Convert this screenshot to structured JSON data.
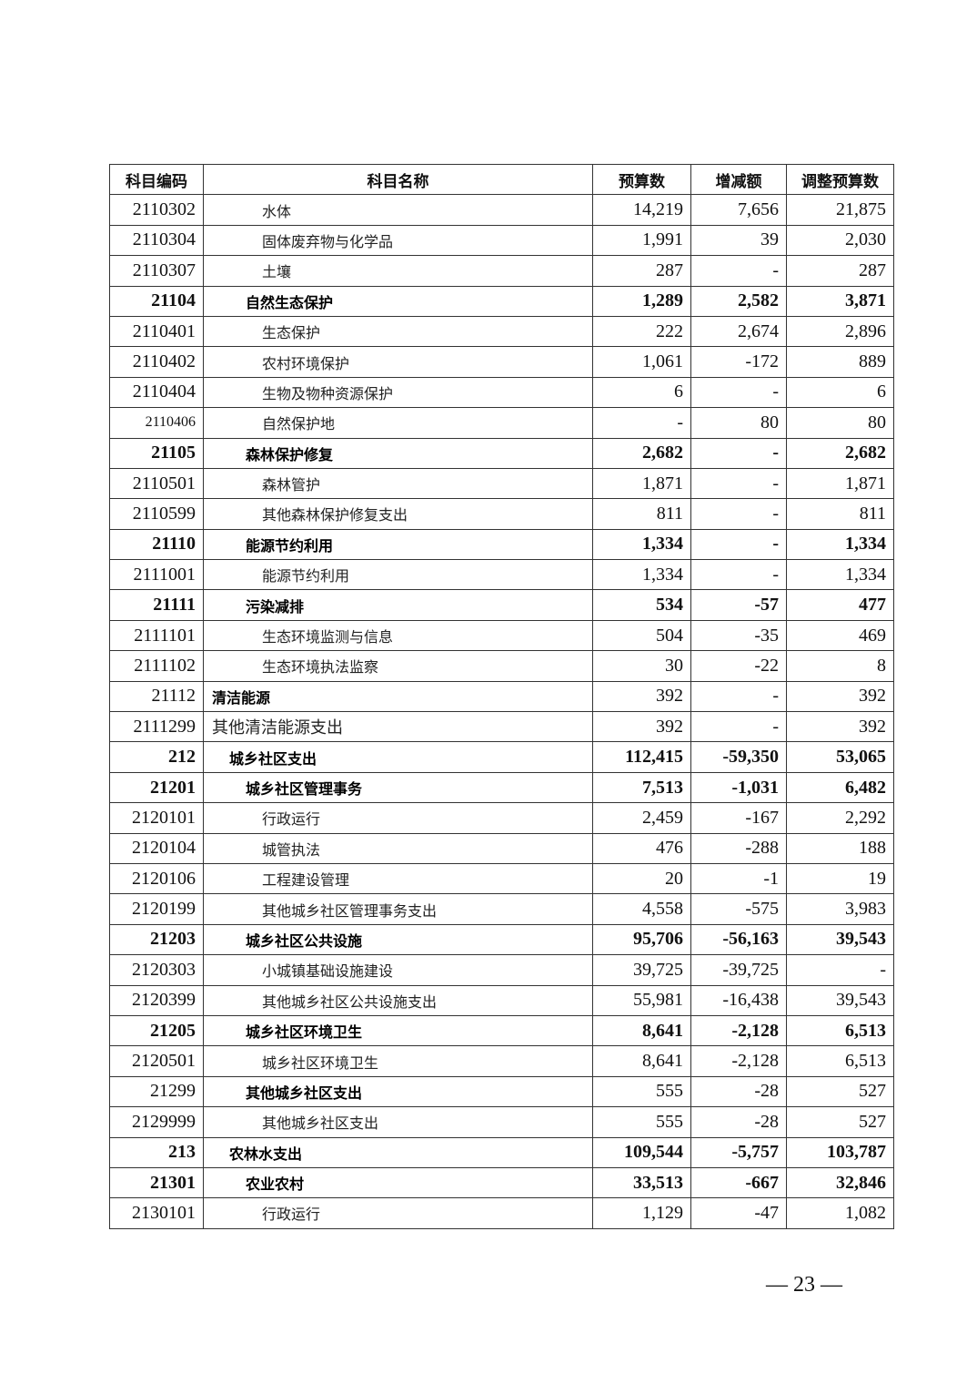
{
  "table": {
    "headers": [
      "科目编码",
      "科目名称",
      "预算数",
      "增减额",
      "调整预算数"
    ],
    "rows": [
      {
        "code": "2110302",
        "name": "水体",
        "budget": "14,219",
        "change": "7,656",
        "adjusted": "21,875",
        "level": "item"
      },
      {
        "code": "2110304",
        "name": "固体废弃物与化学品",
        "budget": "1,991",
        "change": "39",
        "adjusted": "2,030",
        "level": "item"
      },
      {
        "code": "2110307",
        "name": "土壤",
        "budget": "287",
        "change": "-",
        "adjusted": "287",
        "level": "item"
      },
      {
        "code": "21104",
        "name": "自然生态保护",
        "budget": "1,289",
        "change": "2,582",
        "adjusted": "3,871",
        "level": "section"
      },
      {
        "code": "2110401",
        "name": "生态保护",
        "budget": "222",
        "change": "2,674",
        "adjusted": "2,896",
        "level": "item"
      },
      {
        "code": "2110402",
        "name": "农村环境保护",
        "budget": "1,061",
        "change": "-172",
        "adjusted": "889",
        "level": "item"
      },
      {
        "code": "2110404",
        "name": "生物及物种资源保护",
        "budget": "6",
        "change": "-",
        "adjusted": "6",
        "level": "item"
      },
      {
        "code": "2110406",
        "name": "自然保护地",
        "budget": "-",
        "change": "80",
        "adjusted": "80",
        "level": "item small"
      },
      {
        "code": "21105",
        "name": "森林保护修复",
        "budget": "2,682",
        "change": "-",
        "adjusted": "2,682",
        "level": "section"
      },
      {
        "code": "2110501",
        "name": "森林管护",
        "budget": "1,871",
        "change": "-",
        "adjusted": "1,871",
        "level": "item"
      },
      {
        "code": "2110599",
        "name": "其他森林保护修复支出",
        "budget": "811",
        "change": "-",
        "adjusted": "811",
        "level": "item"
      },
      {
        "code": "21110",
        "name": "能源节约利用",
        "budget": "1,334",
        "change": "-",
        "adjusted": "1,334",
        "level": "section"
      },
      {
        "code": "2111001",
        "name": "能源节约利用",
        "budget": "1,334",
        "change": "-",
        "adjusted": "1,334",
        "level": "item"
      },
      {
        "code": "21111",
        "name": "污染减排",
        "budget": "534",
        "change": "-57",
        "adjusted": "477",
        "level": "section"
      },
      {
        "code": "2111101",
        "name": "生态环境监测与信息",
        "budget": "504",
        "change": "-35",
        "adjusted": "469",
        "level": "item"
      },
      {
        "code": "2111102",
        "name": "生态环境执法监察",
        "budget": "30",
        "change": "-22",
        "adjusted": "8",
        "level": "item"
      },
      {
        "code": "21112",
        "name": "清洁能源",
        "budget": "392",
        "change": "-",
        "adjusted": "392",
        "level": "plainbold"
      },
      {
        "code": "2111299",
        "name": "其他清洁能源支出",
        "budget": "392",
        "change": "-",
        "adjusted": "392",
        "level": "plain"
      },
      {
        "code": "212",
        "name": "城乡社区支出",
        "budget": "112,415",
        "change": "-59,350",
        "adjusted": "53,065",
        "level": "class"
      },
      {
        "code": "21201",
        "name": "城乡社区管理事务",
        "budget": "7,513",
        "change": "-1,031",
        "adjusted": "6,482",
        "level": "section"
      },
      {
        "code": "2120101",
        "name": "行政运行",
        "budget": "2,459",
        "change": "-167",
        "adjusted": "2,292",
        "level": "item"
      },
      {
        "code": "2120104",
        "name": "城管执法",
        "budget": "476",
        "change": "-288",
        "adjusted": "188",
        "level": "item"
      },
      {
        "code": "2120106",
        "name": "工程建设管理",
        "budget": "20",
        "change": "-1",
        "adjusted": "19",
        "level": "item"
      },
      {
        "code": "2120199",
        "name": "其他城乡社区管理事务支出",
        "budget": "4,558",
        "change": "-575",
        "adjusted": "3,983",
        "level": "item"
      },
      {
        "code": "21203",
        "name": "城乡社区公共设施",
        "budget": "95,706",
        "change": "-56,163",
        "adjusted": "39,543",
        "level": "section"
      },
      {
        "code": "2120303",
        "name": "小城镇基础设施建设",
        "budget": "39,725",
        "change": "-39,725",
        "adjusted": "-",
        "level": "item"
      },
      {
        "code": "2120399",
        "name": "其他城乡社区公共设施支出",
        "budget": "55,981",
        "change": "-16,438",
        "adjusted": "39,543",
        "level": "item"
      },
      {
        "code": "21205",
        "name": "城乡社区环境卫生",
        "budget": "8,641",
        "change": "-2,128",
        "adjusted": "6,513",
        "level": "section"
      },
      {
        "code": "2120501",
        "name": "城乡社区环境卫生",
        "budget": "8,641",
        "change": "-2,128",
        "adjusted": "6,513",
        "level": "item"
      },
      {
        "code": "21299",
        "name": "其他城乡社区支出",
        "budget": "555",
        "change": "-28",
        "adjusted": "527",
        "level": "section-name-only"
      },
      {
        "code": "2129999",
        "name": "其他城乡社区支出",
        "budget": "555",
        "change": "-28",
        "adjusted": "527",
        "level": "item"
      },
      {
        "code": "213",
        "name": "农林水支出",
        "budget": "109,544",
        "change": "-5,757",
        "adjusted": "103,787",
        "level": "class"
      },
      {
        "code": "21301",
        "name": "农业农村",
        "budget": "33,513",
        "change": "-667",
        "adjusted": "32,846",
        "level": "section"
      },
      {
        "code": "2130101",
        "name": "行政运行",
        "budget": "1,129",
        "change": "-47",
        "adjusted": "1,082",
        "level": "item"
      }
    ]
  },
  "page_number": "— 23 —"
}
